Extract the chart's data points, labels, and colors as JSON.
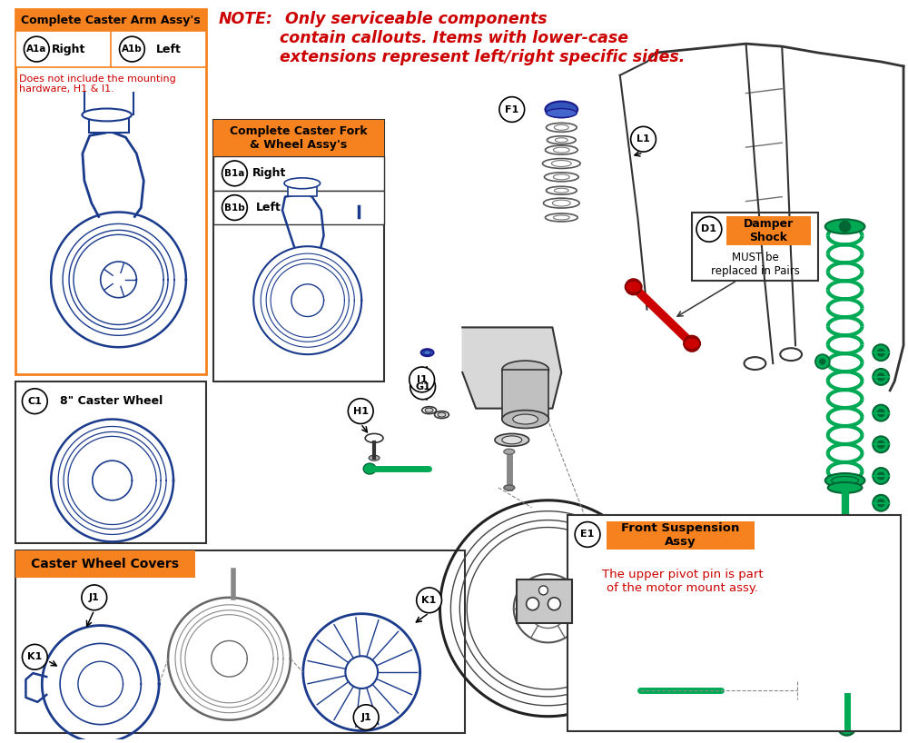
{
  "bg_color": "#ffffff",
  "orange_color": "#f5821f",
  "red_color": "#cc0000",
  "blue_color": "#1a3a8c",
  "green_color": "#00aa55",
  "dark_color": "#333333",
  "note_bold": "NOTE:",
  "note_rest": " Only serviceable components\ncontain callouts. Items with lower-case\nextensions represent left/right specific sides.",
  "box1_title": "Complete Caster Arm Assy's",
  "box1_note": "Does not include the mounting\nhardware, H1 & I1.",
  "box2_title": "Complete Caster Fork\n& Wheel Assy's",
  "box3_title": "8\" Caster Wheel",
  "box4_title": "Caster Wheel Covers",
  "box5_title": "Front Suspension\nAssy",
  "box5_note": "The upper pivot pin is part\nof the motor mount assy.",
  "damper_title": "Damper\nShock",
  "damper_note": "MUST be\nreplaced in Pairs",
  "figsize": [
    10.0,
    8.18
  ],
  "dpi": 100
}
